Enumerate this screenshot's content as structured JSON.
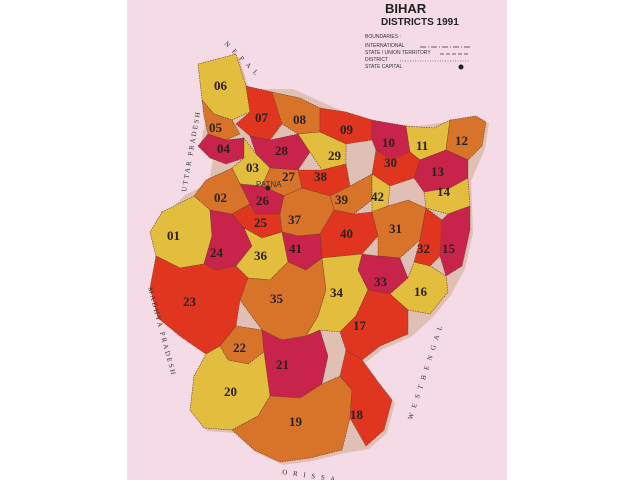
{
  "title": "BIHAR",
  "subtitle": "DISTRICTS 1991",
  "legend": {
    "heading": "BOUNDARIES :",
    "items": [
      "INTERNATIONAL",
      "STATE / UNION TERRITORY",
      "DISTRICT",
      "STATE CAPITAL"
    ]
  },
  "neighbors": {
    "nepal": "N E P A L",
    "uttar_pradesh": "UTTAR PRADESH",
    "madhya_pradesh": "MADHYA PRADESH",
    "west_bengal": "W E S T   B E N G A L",
    "orissa": "O R I S S A"
  },
  "capital": "PATNA",
  "colors": {
    "yellow": "#e3bd3d",
    "orange": "#d8742a",
    "red": "#e0361f",
    "crimson": "#c8234a",
    "sheet": "#f5dbe6"
  },
  "districts": [
    {
      "num": "06",
      "color": "yellow"
    },
    {
      "num": "07",
      "color": "red"
    },
    {
      "num": "08",
      "color": "orange"
    },
    {
      "num": "09",
      "color": "red"
    },
    {
      "num": "05",
      "color": "orange"
    },
    {
      "num": "04",
      "color": "crimson"
    },
    {
      "num": "28",
      "color": "crimson"
    },
    {
      "num": "29",
      "color": "yellow"
    },
    {
      "num": "10",
      "color": "crimson"
    },
    {
      "num": "11",
      "color": "yellow"
    },
    {
      "num": "12",
      "color": "orange"
    },
    {
      "num": "30",
      "color": "red"
    },
    {
      "num": "03",
      "color": "yellow"
    },
    {
      "num": "27",
      "color": "orange"
    },
    {
      "num": "38",
      "color": "red"
    },
    {
      "num": "13",
      "color": "crimson"
    },
    {
      "num": "02",
      "color": "orange"
    },
    {
      "num": "26",
      "color": "crimson"
    },
    {
      "num": "39",
      "color": "orange"
    },
    {
      "num": "42",
      "color": "yellow"
    },
    {
      "num": "14",
      "color": "yellow"
    },
    {
      "num": "25",
      "color": "red"
    },
    {
      "num": "37",
      "color": "orange"
    },
    {
      "num": "01",
      "color": "yellow"
    },
    {
      "num": "24",
      "color": "crimson"
    },
    {
      "num": "36",
      "color": "yellow"
    },
    {
      "num": "41",
      "color": "crimson"
    },
    {
      "num": "40",
      "color": "red"
    },
    {
      "num": "31",
      "color": "orange"
    },
    {
      "num": "32",
      "color": "red"
    },
    {
      "num": "15",
      "color": "crimson"
    },
    {
      "num": "33",
      "color": "crimson"
    },
    {
      "num": "23",
      "color": "red"
    },
    {
      "num": "35",
      "color": "orange"
    },
    {
      "num": "34",
      "color": "yellow"
    },
    {
      "num": "16",
      "color": "yellow"
    },
    {
      "num": "17",
      "color": "red"
    },
    {
      "num": "22",
      "color": "orange"
    },
    {
      "num": "21",
      "color": "crimson"
    },
    {
      "num": "20",
      "color": "yellow"
    },
    {
      "num": "19",
      "color": "orange"
    },
    {
      "num": "18",
      "color": "red"
    }
  ]
}
